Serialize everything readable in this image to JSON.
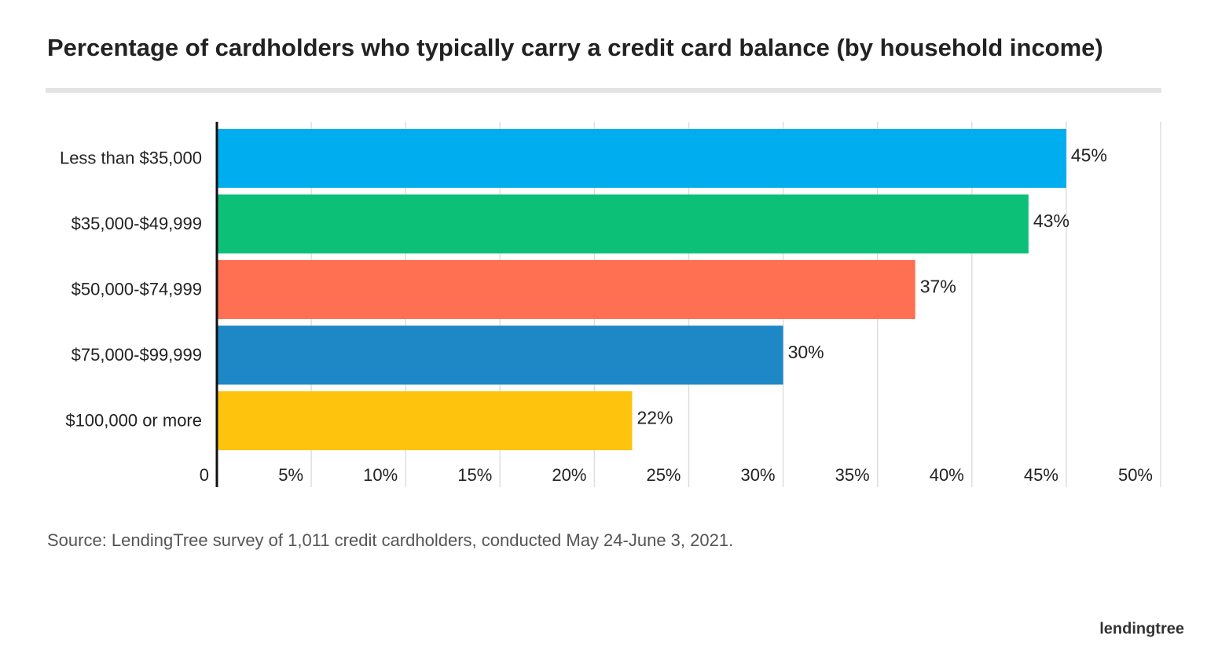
{
  "chart_data": {
    "type": "bar",
    "orientation": "horizontal",
    "title": "Percentage of cardholders who typically carry a credit card balance (by household income)",
    "categories": [
      "Less than $35,000",
      "$35,000-$49,999",
      "$50,000-$74,999",
      "$75,000-$99,999",
      "$100,000 or more"
    ],
    "values": [
      45,
      43,
      37,
      30,
      22
    ],
    "value_labels": [
      "45%",
      "43%",
      "37%",
      "30%",
      "22%"
    ],
    "colors": [
      "#00aeef",
      "#0cc078",
      "#ff7052",
      "#1e88c7",
      "#fec40d"
    ],
    "xlim": [
      0,
      50
    ],
    "xticks": [
      0,
      {
        "value": 5,
        "label": "5%"
      },
      {
        "value": 10,
        "label": "10%"
      },
      {
        "value": 15,
        "label": "15%"
      },
      {
        "value": 20,
        "label": "20%"
      },
      {
        "value": 25,
        "label": "25%"
      },
      {
        "value": 30,
        "label": "30%"
      },
      {
        "value": 35,
        "label": "35%"
      },
      {
        "value": 40,
        "label": "40%"
      },
      {
        "value": 45,
        "label": "45%"
      },
      {
        "value": 50,
        "label": "50%"
      }
    ],
    "grid": true,
    "source": "Source: LendingTree survey of 1,011 credit cardholders, conducted May 24-June 3, 2021.",
    "logo": "lendingtree"
  }
}
